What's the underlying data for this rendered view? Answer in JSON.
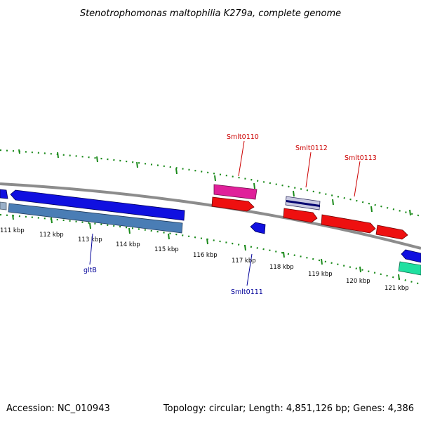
{
  "title": "Stenotrophomonas maltophilia K279a, complete genome",
  "footer": {
    "accession": "Accession: NC_010943",
    "summary": "Topology: circular; Length: 4,851,126 bp; Genes: 4,386"
  },
  "colors": {
    "backbone": "#8c8c8c",
    "tick": "#1a8a1a",
    "forward_label": "#cc0000",
    "reverse_label": "#000099",
    "blue_feature": "#1010e0",
    "steelblue_feature": "#4a7db5",
    "red_feature": "#ee1010",
    "magenta_feature": "#e0209a",
    "teal_feature": "#20e0a0"
  },
  "ticks": {
    "labels": [
      "111 kbp",
      "112 kbp",
      "113 kbp",
      "114 kbp",
      "115 kbp",
      "116 kbp",
      "117 kbp",
      "118 kbp",
      "119 kbp",
      "120 kbp",
      "121 kbp"
    ]
  },
  "gene_labels": {
    "forward": [
      "Smlt0110",
      "Smlt0112",
      "Smlt0113"
    ],
    "reverse": [
      "gltB",
      "Smlt0111"
    ]
  }
}
